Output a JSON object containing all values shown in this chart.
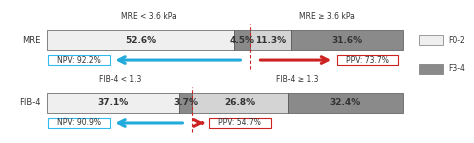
{
  "mre_segments": [
    52.6,
    4.5,
    11.3,
    31.6
  ],
  "fib4_segments": [
    37.1,
    3.7,
    26.8,
    32.4
  ],
  "mre_seg_colors": [
    "#efefef",
    "#8a8a8a",
    "#d4d4d4",
    "#8a8a8a"
  ],
  "fib4_seg_colors": [
    "#efefef",
    "#8a8a8a",
    "#d4d4d4",
    "#8a8a8a"
  ],
  "mre_labels": [
    "52.6%",
    "4.5%",
    "11.3%",
    "31.6%"
  ],
  "fib4_labels": [
    "37.1%",
    "3.7%",
    "26.8%",
    "32.4%"
  ],
  "mre_row_label": "MRE",
  "fib4_row_label": "FIB-4",
  "mre_header_left": "MRE < 3.6 kPa",
  "mre_header_right": "MRE ≥ 3.6 kPa",
  "fib4_header_left": "FIB-4 < 1.3",
  "fib4_header_right": "FIB-4 ≥ 1.3",
  "mre_npv": "NPV: 92.2%",
  "mre_ppv": "PPV: 73.7%",
  "fib4_npv": "NPV: 90.9%",
  "fib4_ppv": "PPV: 54.7%",
  "legend_labels": [
    "F0-2",
    "F3-4"
  ],
  "bar_edge_color": "#555555",
  "divider_color": "#cc2222",
  "blue_arrow_color": "#22aadd",
  "red_arrow_color": "#cc2222",
  "npv_box_edge": "#33bbee",
  "ppv_box_edge": "#cc2222",
  "text_dark": "#333333",
  "figsize": [
    4.74,
    1.43
  ],
  "dpi": 100
}
